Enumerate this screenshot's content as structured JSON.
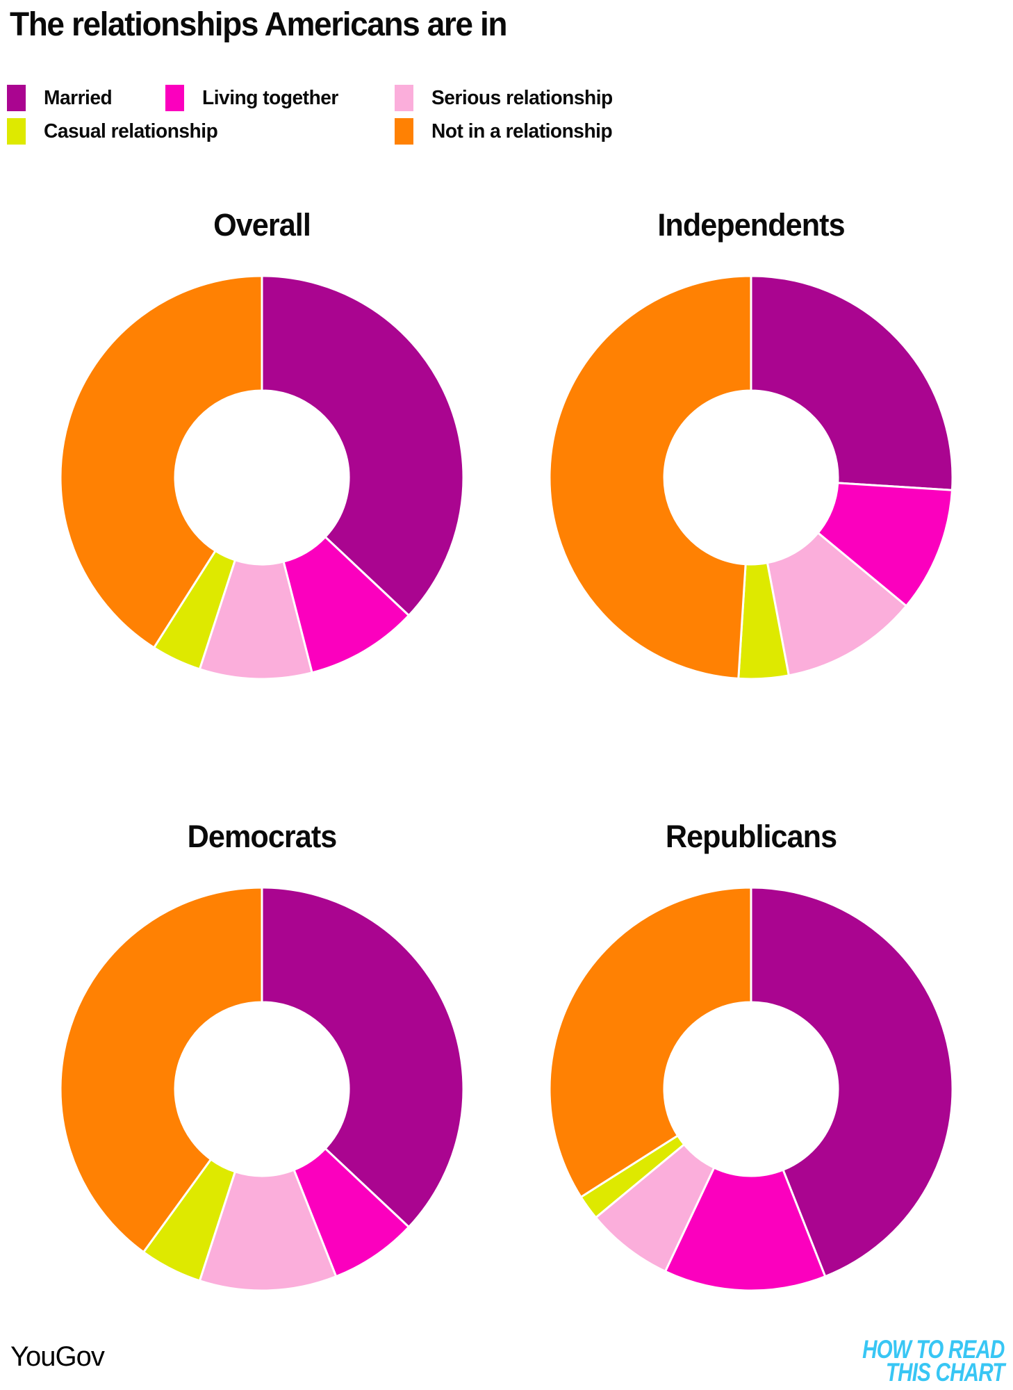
{
  "page_title": "The relationships Americans are in",
  "colors": {
    "married": "#AA0590",
    "living_together": "#FB00BE",
    "serious_relationship": "#FBAEDB",
    "casual_relationship": "#DEE900",
    "not_in_relationship": "#FF8103",
    "brand": "#38C6F4",
    "text": "#0a0a0a"
  },
  "legend": {
    "rows": [
      [
        {
          "label": "Married",
          "color": "#AA0590"
        },
        {
          "label": "Living together",
          "color": "#FB00BE"
        },
        {
          "label": "Serious relationship",
          "color": "#FBAEDB"
        }
      ],
      [
        {
          "label": "Casual relationship",
          "color": "#DEE900"
        },
        {
          "label": "Not in a relationship",
          "color": "#FF8103"
        }
      ]
    ]
  },
  "chart_data": [
    {
      "type": "pie",
      "title": "Overall",
      "categories": [
        "Married",
        "Living together",
        "Serious relationship",
        "Casual relationship",
        "Not in a relationship"
      ],
      "values": [
        37,
        9,
        9,
        4,
        41
      ],
      "unit": "%",
      "colors": [
        "#AA0590",
        "#FB00BE",
        "#FBAEDB",
        "#DEE900",
        "#FF8103"
      ],
      "donut": true,
      "inner_radius_ratio": 0.43,
      "start_angle": "12 o'clock",
      "direction": "clockwise",
      "legend_position": "top"
    },
    {
      "type": "pie",
      "title": "Independents",
      "categories": [
        "Married",
        "Living together",
        "Serious relationship",
        "Casual relationship",
        "Not in a relationship"
      ],
      "values": [
        26,
        10,
        11,
        4,
        49
      ],
      "unit": "%",
      "colors": [
        "#AA0590",
        "#FB00BE",
        "#FBAEDB",
        "#DEE900",
        "#FF8103"
      ],
      "donut": true,
      "inner_radius_ratio": 0.43,
      "start_angle": "12 o'clock",
      "direction": "clockwise",
      "legend_position": "top"
    },
    {
      "type": "pie",
      "title": "Democrats",
      "categories": [
        "Married",
        "Living together",
        "Serious relationship",
        "Casual relationship",
        "Not in a relationship"
      ],
      "values": [
        37,
        7,
        11,
        5,
        40
      ],
      "unit": "%",
      "colors": [
        "#AA0590",
        "#FB00BE",
        "#FBAEDB",
        "#DEE900",
        "#FF8103"
      ],
      "donut": true,
      "inner_radius_ratio": 0.43,
      "start_angle": "12 o'clock",
      "direction": "clockwise",
      "legend_position": "top"
    },
    {
      "type": "pie",
      "title": "Republicans",
      "categories": [
        "Married",
        "Living together",
        "Serious relationship",
        "Casual relationship",
        "Not in a relationship"
      ],
      "values": [
        44,
        13,
        7,
        2,
        34
      ],
      "unit": "%",
      "colors": [
        "#AA0590",
        "#FB00BE",
        "#FBAEDB",
        "#DEE900",
        "#FF8103"
      ],
      "donut": true,
      "inner_radius_ratio": 0.43,
      "start_angle": "12 o'clock",
      "direction": "clockwise",
      "legend_position": "top"
    }
  ],
  "footer": {
    "source": "YouGov",
    "brand_line1": "HOW TO READ",
    "brand_line2": "THIS CHART",
    "brand_color": "#38C6F4"
  }
}
